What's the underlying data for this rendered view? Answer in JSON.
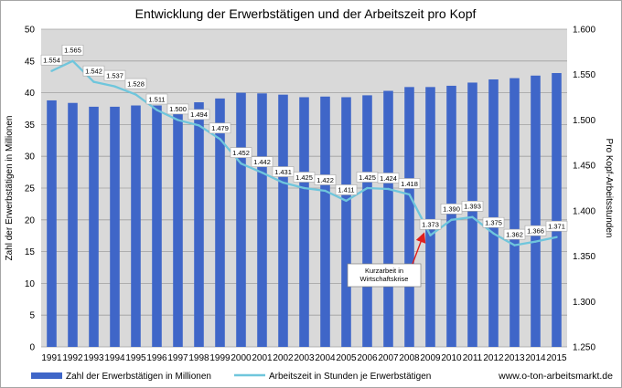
{
  "chart_data": {
    "type": "bar+line",
    "title": "Entwicklung der Erwerbstätigen und der Arbeitszeit pro Kopf",
    "categories": [
      "1991",
      "1992",
      "1993",
      "1994",
      "1995",
      "1996",
      "1997",
      "1998",
      "1999",
      "2000",
      "2001",
      "2002",
      "2003",
      "2004",
      "2005",
      "2006",
      "2007",
      "2008",
      "2009",
      "2010",
      "2011",
      "2012",
      "2013",
      "2014",
      "2015"
    ],
    "series": [
      {
        "name": "Zahl der Erwerbstätigen in Millionen",
        "type": "bar",
        "axis": "left",
        "color": "#3f66c8",
        "values": [
          38.8,
          38.4,
          37.8,
          37.8,
          38.0,
          38.0,
          38.0,
          38.5,
          39.1,
          40.0,
          39.9,
          39.7,
          39.3,
          39.4,
          39.3,
          39.6,
          40.3,
          40.9,
          40.9,
          41.1,
          41.6,
          42.1,
          42.3,
          42.7,
          43.1
        ]
      },
      {
        "name": "Arbeitszeit in Stunden je Erwerbstätigen",
        "type": "line",
        "axis": "right",
        "color": "#6fc6dc",
        "values": [
          1554,
          1565,
          1542,
          1537,
          1528,
          1511,
          1500,
          1494,
          1479,
          1452,
          1442,
          1431,
          1425,
          1422,
          1411,
          1425,
          1424,
          1418,
          1373,
          1390,
          1393,
          1375,
          1362,
          1366,
          1371
        ],
        "labels": [
          "1.554",
          "1.565",
          "1.542",
          "1.537",
          "1.528",
          "1.511",
          "1.500",
          "1.494",
          "1.479",
          "1.452",
          "1.442",
          "1.431",
          "1.425",
          "1.422",
          "1.411",
          "1.425",
          "1.424",
          "1.418",
          "1.373",
          "1.390",
          "1.393",
          "1.375",
          "1.362",
          "1.366",
          "1.371"
        ]
      }
    ],
    "y_left": {
      "label": "Zahl der Erwerbstätigen in Millionen",
      "range": [
        0,
        50
      ],
      "ticks": [
        0,
        5,
        10,
        15,
        20,
        25,
        30,
        35,
        40,
        45,
        50
      ],
      "tick_labels": [
        "0",
        "5",
        "10",
        "15",
        "20",
        "25",
        "30",
        "35",
        "40",
        "45",
        "50"
      ]
    },
    "y_right": {
      "label": "Pro Kopf-Arbeitsstunden",
      "range": [
        1250,
        1600
      ],
      "ticks": [
        1250,
        1300,
        1350,
        1400,
        1450,
        1500,
        1550,
        1600
      ],
      "tick_labels": [
        "1.250",
        "1.300",
        "1.350",
        "1.400",
        "1.450",
        "1.500",
        "1.550",
        "1.600"
      ]
    },
    "grid": true,
    "legend_position": "bottom",
    "annotation": {
      "lines": [
        "Kurzarbeit in",
        "Wirtschaftskrise"
      ],
      "points_to": "2009"
    },
    "source": "www.o-ton-arbeitsmarkt.de"
  }
}
